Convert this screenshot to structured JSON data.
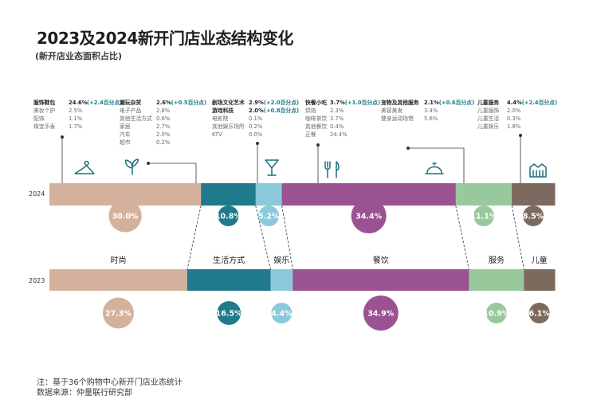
{
  "title": "2023及2024新开门店业态结构变化",
  "subtitle": "(新开店业态面积占比)",
  "notes": {
    "line1": "注：基于36个购物中心新开门店业态统计",
    "line2": "数据来源：仲量联行研究部"
  },
  "colors": {
    "时尚": "#d4b19c",
    "生活方式": "#1f7a8c",
    "娱乐": "#8ac8dc",
    "餐饮": "#9b5293",
    "服务": "#98c99d",
    "儿童": "#7d6a5f",
    "accent_teal": "#1f7a8c"
  },
  "chart_data": {
    "type": "bar",
    "subtype": "stacked-100-horizontal",
    "categories": [
      "时尚",
      "生活方式",
      "娱乐",
      "餐饮",
      "服务",
      "儿童"
    ],
    "series": [
      {
        "name": "2024",
        "values": [
          30.0,
          10.8,
          5.2,
          34.4,
          11.1,
          8.5
        ],
        "labels": [
          "30.0%",
          "10.8%",
          "5.2%",
          "34.4%",
          "11.1%",
          "8.5%"
        ]
      },
      {
        "name": "2023",
        "values": [
          27.3,
          16.5,
          4.4,
          34.9,
          10.9,
          6.1
        ],
        "labels": [
          "27.3%",
          "16.5%",
          "4.4%",
          "34.9%",
          "10.9%",
          "6.1%"
        ]
      }
    ],
    "icons": [
      "hanger-icon",
      "leaf-icon",
      "cocktail-icon",
      "cutlery-icon",
      "cloche-icon",
      "building-icon"
    ],
    "annotations": [
      {
        "category": "时尚",
        "rows": [
          {
            "label": "服饰鞋包",
            "value": "24.6%",
            "change": "(+2.4百分点)",
            "head": true
          },
          {
            "label": "美妆个护",
            "value": "2.5%"
          },
          {
            "label": "配饰",
            "value": "1.1%"
          },
          {
            "label": "珠宝手表",
            "value": "1.7%"
          }
        ]
      },
      {
        "category": "生活方式",
        "rows": [
          {
            "label": "潮玩杂货",
            "value": "2.6%",
            "change": "(+0.5百分点)",
            "head": true
          },
          {
            "label": "电子产品",
            "value": "2.8%"
          },
          {
            "label": "其他生活方式",
            "value": "0.6%"
          },
          {
            "label": "家居",
            "value": "2.7%"
          },
          {
            "label": "汽车",
            "value": "2.0%"
          },
          {
            "label": "超市",
            "value": "0.2%"
          }
        ]
      },
      {
        "category": "娱乐",
        "rows": [
          {
            "label": "剧场文化艺术",
            "value": "2.9%",
            "change": "(+2.0百分点)",
            "head": true
          },
          {
            "label": "游戏科技",
            "value": "2.0%",
            "change": "(+0.8百分点)",
            "head": true
          },
          {
            "label": "电影院",
            "value": "0.1%"
          },
          {
            "label": "其他娱乐场所",
            "value": "0.2%"
          },
          {
            "label": "KTV",
            "value": "0.0%"
          }
        ]
      },
      {
        "category": "餐饮",
        "rows": [
          {
            "label": "快餐小吃",
            "value": "3.7%",
            "change": "(+1.0百分点)",
            "head": true
          },
          {
            "label": "烘焙",
            "value": "2.3%"
          },
          {
            "label": "咖啡茶饮",
            "value": "3.7%"
          },
          {
            "label": "其他餐饮",
            "value": "0.4%"
          },
          {
            "label": "正餐",
            "value": "24.4%"
          }
        ]
      },
      {
        "category": "服务",
        "rows": [
          {
            "label": "宠物及其他服务",
            "value": "2.1%",
            "change": "(+0.6百分点)",
            "head": true
          },
          {
            "label": "美容美发",
            "value": "3.4%"
          },
          {
            "label": "健身运动场馆",
            "value": "5.6%"
          }
        ]
      },
      {
        "category": "儿童",
        "rows": [
          {
            "label": "儿童服务",
            "value": "4.4%",
            "change": "(+2.4百分点)",
            "head": true
          },
          {
            "label": "儿童服饰",
            "value": "2.0%"
          },
          {
            "label": "儿童生活",
            "value": "0.3%"
          },
          {
            "label": "儿童娱乐",
            "value": "1.8%"
          }
        ]
      }
    ],
    "xlim": [
      0,
      100
    ],
    "legend": "none",
    "grid": false
  }
}
